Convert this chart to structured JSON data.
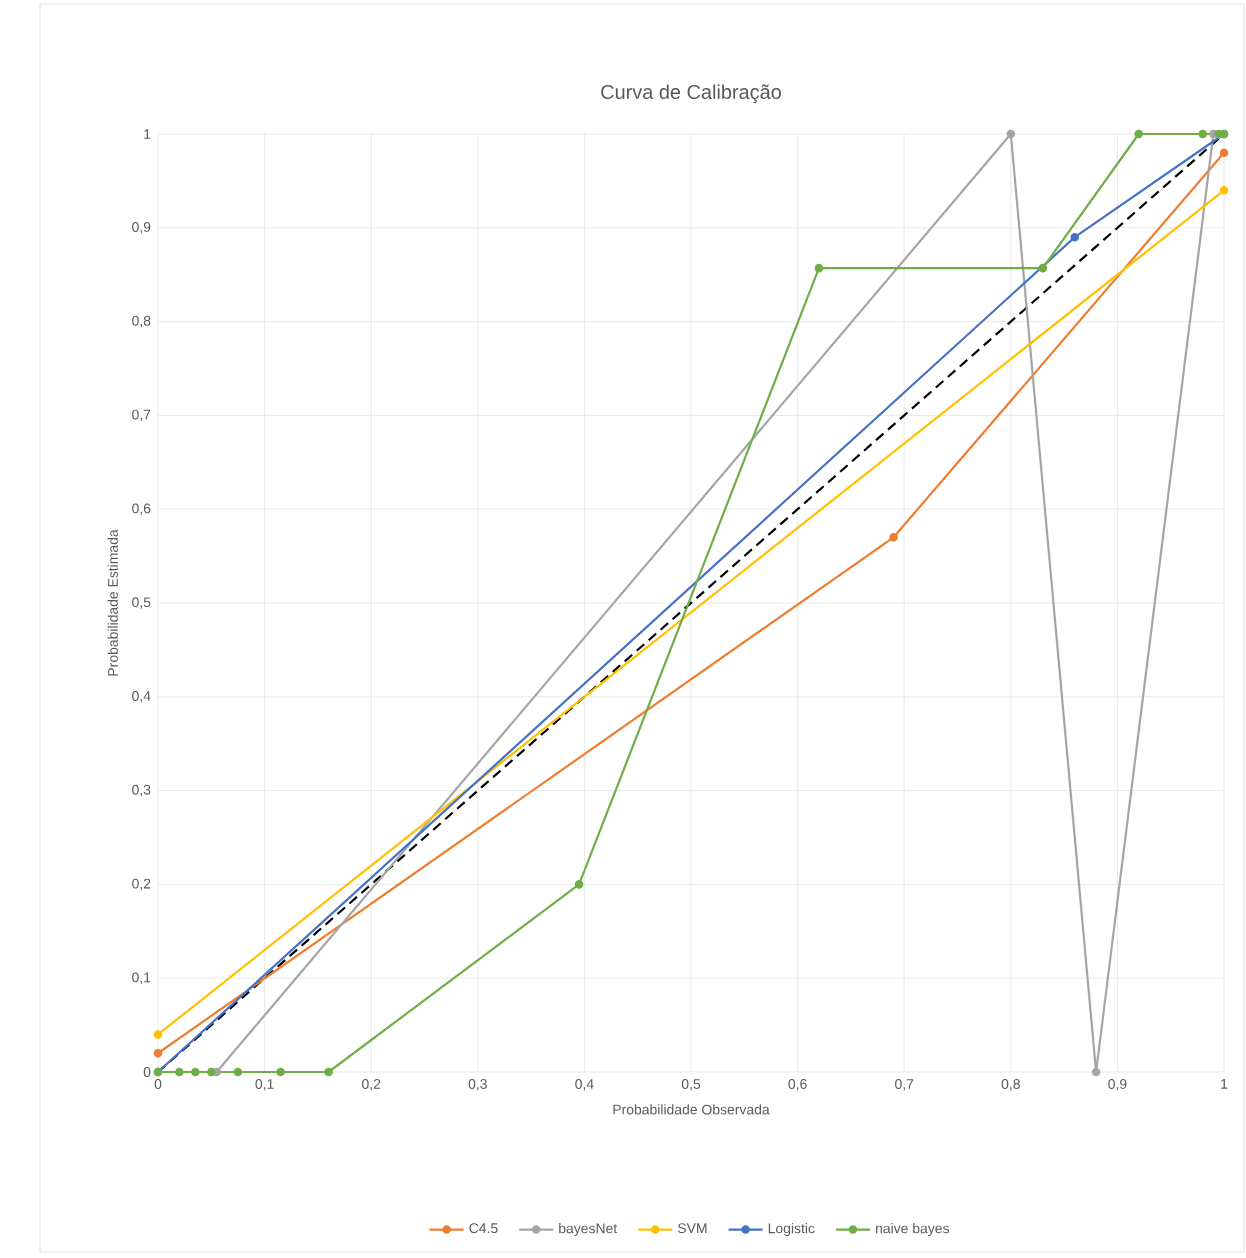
{
  "chart_data": {
    "type": "line",
    "title": "Curva de Calibração",
    "xlabel": "Probabilidade Observada",
    "ylabel": "Probabilidade Estimada",
    "xlim": [
      0,
      1
    ],
    "ylim": [
      0,
      1
    ],
    "xticks": [
      0,
      {
        "value": 0.1,
        "label": "0,1"
      },
      {
        "value": 0.2,
        "label": "0,2"
      },
      {
        "value": 0.3,
        "label": "0,3"
      },
      {
        "value": 0.4,
        "label": "0,4"
      },
      {
        "value": 0.5,
        "label": "0,5"
      },
      {
        "value": 0.6,
        "label": "0,6"
      },
      {
        "value": 0.7,
        "label": "0,7"
      },
      {
        "value": 0.8,
        "label": "0,8"
      },
      {
        "value": 0.9,
        "label": "0,9"
      },
      1
    ],
    "yticks": [
      0,
      {
        "value": 0.1,
        "label": "0,1"
      },
      {
        "value": 0.2,
        "label": "0,2"
      },
      {
        "value": 0.3,
        "label": "0,3"
      },
      {
        "value": 0.4,
        "label": "0,4"
      },
      {
        "value": 0.5,
        "label": "0,5"
      },
      {
        "value": 0.6,
        "label": "0,6"
      },
      {
        "value": 0.7,
        "label": "0,7"
      },
      {
        "value": 0.8,
        "label": "0,8"
      },
      {
        "value": 0.9,
        "label": "0,9"
      },
      1
    ],
    "grid": true,
    "legend": "bottom",
    "marker": "circle",
    "line_style": "solid",
    "series": [
      {
        "x": [
          0,
          1
        ],
        "values": [
          0,
          1
        ],
        "color": "#000000",
        "line_style": "dashed",
        "marker": "none"
      },
      {
        "name": "C4.5",
        "color": "#ed7d31",
        "x": [
          0,
          0.69,
          1
        ],
        "values": [
          0.02,
          0.57,
          0.98
        ]
      },
      {
        "name": "bayesNet",
        "color": "#a5a5a5",
        "x": [
          0.055,
          0.8,
          0.88,
          0.99
        ],
        "values": [
          0,
          1,
          0,
          1
        ]
      },
      {
        "name": "SVM",
        "color": "#ffc000",
        "x": [
          0,
          1
        ],
        "values": [
          0.04,
          0.94
        ]
      },
      {
        "name": "Logistic",
        "color": "#4472c4",
        "x": [
          0,
          0.86,
          1
        ],
        "values": [
          0,
          0.89,
          1
        ]
      },
      {
        "name": "naive bayes",
        "color": "#70ad47",
        "x": [
          0,
          0.02,
          0.035,
          0.05,
          0.075,
          0.115,
          0.16,
          0.395,
          0.62,
          0.83,
          0.92,
          0.98,
          0.995,
          1
        ],
        "values": [
          0,
          0,
          0,
          0,
          0,
          0,
          0,
          0.2,
          0.857,
          0.857,
          1,
          1,
          1,
          1
        ]
      }
    ]
  }
}
